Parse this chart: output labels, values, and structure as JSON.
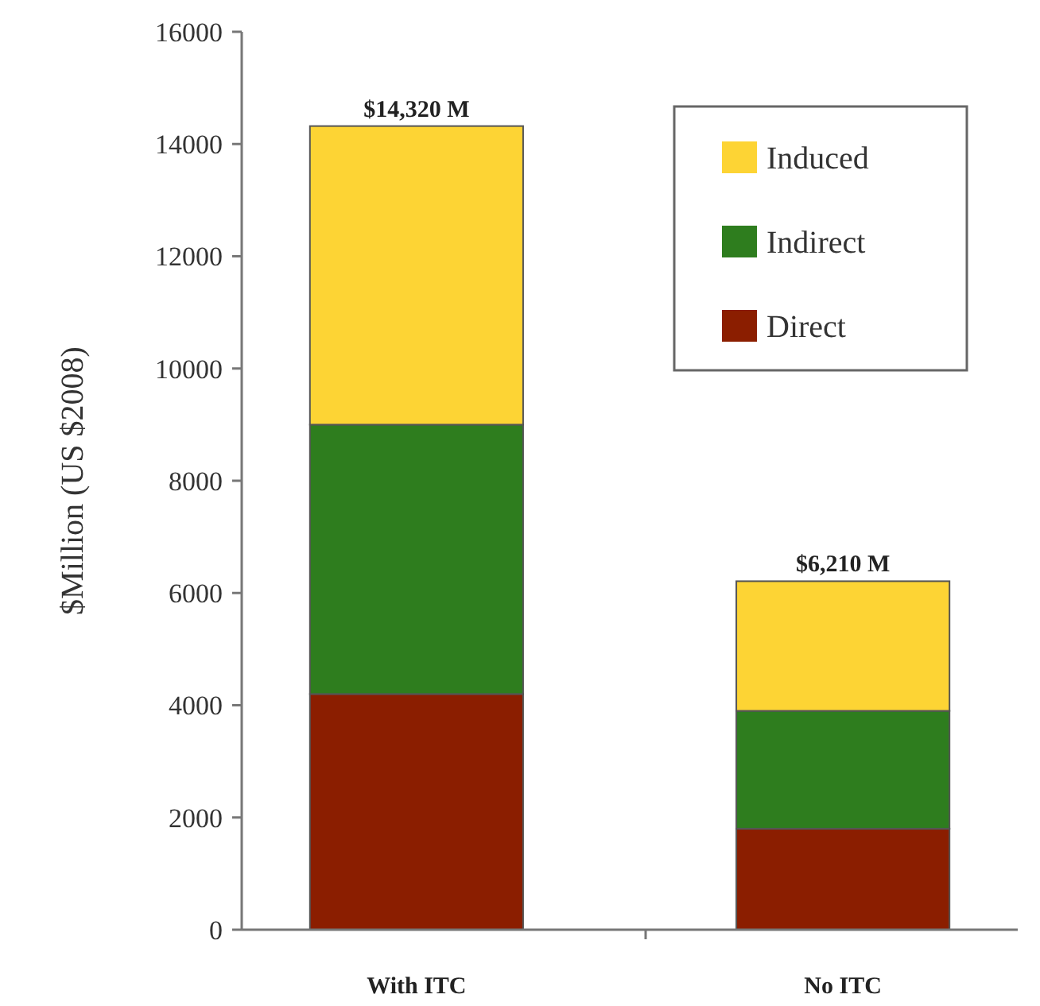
{
  "chart_data": {
    "type": "bar",
    "stacked": true,
    "categories": [
      "With ITC",
      "No ITC"
    ],
    "ylabel": "$Million (US $2008)",
    "series": [
      {
        "name": "Direct",
        "color": "#8b1e00",
        "values": [
          4200,
          1800
        ]
      },
      {
        "name": "Indirect",
        "color": "#2e7d1e",
        "values": [
          4800,
          2100
        ]
      },
      {
        "name": "Induced",
        "color": "#fdd434",
        "values": [
          5320,
          2310
        ]
      }
    ],
    "totals": [
      "$14,320 M",
      "$6,210 M"
    ],
    "ylim": [
      0,
      16000
    ],
    "yticks": [
      0,
      2000,
      4000,
      6000,
      8000,
      10000,
      12000,
      14000,
      16000
    ],
    "grid": false,
    "legend": "top right"
  }
}
